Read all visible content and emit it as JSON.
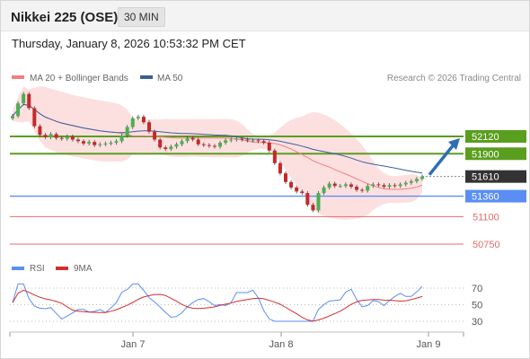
{
  "header": {
    "title": "Nikkei 225 (OSE)",
    "timeframe": "30 MIN"
  },
  "timestamp": "Thursday, January 8, 2026 10:53:32 PM CET",
  "credit": "Research © 2026 Trading Central",
  "legend": {
    "bollinger": "MA 20 + Bollinger Bands",
    "ma50": "MA 50",
    "rsi": "RSI",
    "rsi_ma": "9MA"
  },
  "colors": {
    "bollinger": "#f08080",
    "ma50": "#3a5e9e",
    "resistance": "#5a9e1e",
    "current": "#333333",
    "pivot": "#5b8ef5",
    "support": "#e36b6b",
    "arrow": "#2f6db5",
    "bull": "#4caf50",
    "bear": "#c62828"
  },
  "chart_data": {
    "type": "candlestick",
    "x_ticks": [
      "Jan 7",
      "Jan 8",
      "Jan 9"
    ],
    "price_levels": [
      {
        "value": 52120,
        "label": "52120",
        "kind": "resistance"
      },
      {
        "value": 51900,
        "label": "51900",
        "kind": "resistance"
      },
      {
        "value": 51610,
        "label": "51610",
        "kind": "current"
      },
      {
        "value": 51360,
        "label": "51360",
        "kind": "pivot"
      },
      {
        "value": 51100,
        "label": "51100",
        "kind": "support"
      },
      {
        "value": 50750,
        "label": "50750",
        "kind": "support"
      }
    ],
    "close_series": [
      52380,
      52540,
      52660,
      52480,
      52250,
      52140,
      52110,
      52150,
      52100,
      52090,
      52120,
      52080,
      52060,
      52030,
      52050,
      52010,
      52020,
      52030,
      52040,
      52060,
      52130,
      52240,
      52350,
      52370,
      52300,
      52180,
      52080,
      51980,
      51960,
      51990,
      52020,
      52060,
      52100,
      52080,
      52020,
      52010,
      52000,
      51990,
      52040,
      52070,
      52080,
      52090,
      52080,
      52070,
      52070,
      52060,
      52040,
      51940,
      51780,
      51650,
      51540,
      51470,
      51420,
      51400,
      51250,
      51180,
      51400,
      51470,
      51520,
      51490,
      51490,
      51510,
      51480,
      51440,
      51430,
      51490,
      51510,
      51500,
      51480,
      51500,
      51490,
      51510,
      51530,
      51550,
      51580,
      51610
    ],
    "rsi": {
      "levels": [
        70,
        50,
        30
      ],
      "ylim": [
        10,
        90
      ]
    }
  }
}
